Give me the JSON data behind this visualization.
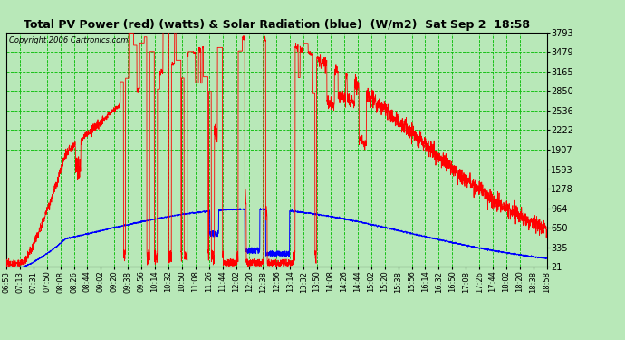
{
  "title": "Total PV Power (red) (watts) & Solar Radiation (blue)  (W/m2)  Sat Sep 2  18:58",
  "copyright": "Copyright 2006 Cartronics.com",
  "background_color": "#b8e8b8",
  "grid_color": "#00bb00",
  "yticks": [
    21.0,
    335.4,
    649.7,
    964.1,
    1278.4,
    1592.8,
    1907.1,
    2221.5,
    2535.9,
    2850.2,
    3164.6,
    3478.9,
    3793.3
  ],
  "ymin": 21.0,
  "ymax": 3793.3,
  "xtick_labels": [
    "06:53",
    "07:13",
    "07:31",
    "07:50",
    "08:08",
    "08:26",
    "08:44",
    "09:02",
    "09:20",
    "09:38",
    "09:56",
    "10:14",
    "10:32",
    "10:50",
    "11:08",
    "11:26",
    "11:44",
    "12:02",
    "12:20",
    "12:38",
    "12:56",
    "13:14",
    "13:32",
    "13:50",
    "14:08",
    "14:26",
    "14:44",
    "15:02",
    "15:20",
    "15:38",
    "15:56",
    "16:14",
    "16:32",
    "16:50",
    "17:08",
    "17:26",
    "17:44",
    "18:02",
    "18:20",
    "18:38",
    "18:58"
  ],
  "title_fontsize": 9.0,
  "copyright_fontsize": 6.0
}
